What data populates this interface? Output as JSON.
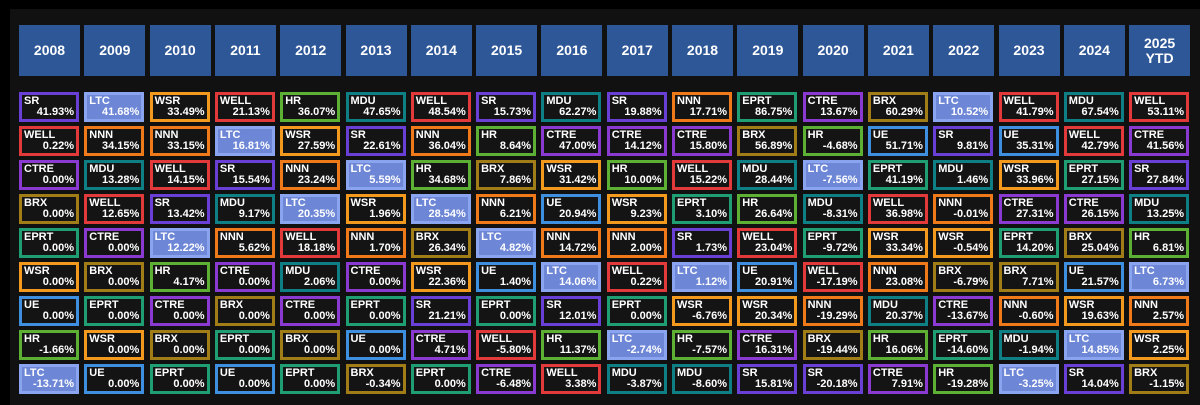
{
  "chart_data": {
    "type": "table",
    "title": "",
    "years": [
      "2008",
      "2009",
      "2010",
      "2011",
      "2012",
      "2013",
      "2014",
      "2015",
      "2016",
      "2017",
      "2018",
      "2019",
      "2020",
      "2021",
      "2022",
      "2023",
      "2024",
      "2025\nYTD"
    ],
    "colors": {
      "SR": "#6a3fd6",
      "LTC": "#8aa4f0",
      "WSR": "#f39a1e",
      "WELL": "#e23a3a",
      "HR": "#5cb135",
      "MDU": "#0f7f86",
      "NNN": "#f07a1a",
      "EPRT": "#1f9e74",
      "CTRE": "#8a3ad0",
      "BRX": "#a17d18",
      "UE": "#3f8fe0",
      "highlight_bg": "#6d86d6",
      "header_bg": "#2e5797"
    },
    "highlight_ticker": "LTC",
    "columns": [
      [
        [
          "SR",
          "41.93%"
        ],
        [
          "WELL",
          "0.22%"
        ],
        [
          "CTRE",
          "0.00%"
        ],
        [
          "BRX",
          "0.00%"
        ],
        [
          "EPRT",
          "0.00%"
        ],
        [
          "WSR",
          "0.00%"
        ],
        [
          "UE",
          "0.00%"
        ],
        [
          "HR",
          "-1.66%"
        ],
        [
          "LTC",
          "-13.71%"
        ]
      ],
      [
        [
          "LTC",
          "41.68%"
        ],
        [
          "NNN",
          "34.15%"
        ],
        [
          "MDU",
          "13.28%"
        ],
        [
          "WELL",
          "12.65%"
        ],
        [
          "CTRE",
          "0.00%"
        ],
        [
          "BRX",
          "0.00%"
        ],
        [
          "EPRT",
          "0.00%"
        ],
        [
          "WSR",
          "0.00%"
        ],
        [
          "UE",
          "0.00%"
        ]
      ],
      [
        [
          "WSR",
          "33.49%"
        ],
        [
          "NNN",
          "33.15%"
        ],
        [
          "WELL",
          "14.15%"
        ],
        [
          "SR",
          "13.42%"
        ],
        [
          "LTC",
          "12.22%"
        ],
        [
          "HR",
          "4.17%"
        ],
        [
          "CTRE",
          "0.00%"
        ],
        [
          "BRX",
          "0.00%"
        ],
        [
          "EPRT",
          "0.00%"
        ]
      ],
      [
        [
          "WELL",
          "21.13%"
        ],
        [
          "LTC",
          "16.81%"
        ],
        [
          "SR",
          "15.54%"
        ],
        [
          "MDU",
          "9.17%"
        ],
        [
          "NNN",
          "5.62%"
        ],
        [
          "CTRE",
          "0.00%"
        ],
        [
          "BRX",
          "0.00%"
        ],
        [
          "EPRT",
          "0.00%"
        ],
        [
          "UE",
          "0.00%"
        ]
      ],
      [
        [
          "HR",
          "36.07%"
        ],
        [
          "WSR",
          "27.59%"
        ],
        [
          "NNN",
          "23.24%"
        ],
        [
          "LTC",
          "20.35%"
        ],
        [
          "WELL",
          "18.18%"
        ],
        [
          "MDU",
          "2.06%"
        ],
        [
          "CTRE",
          "0.00%"
        ],
        [
          "BRX",
          "0.00%"
        ],
        [
          "EPRT",
          "0.00%"
        ]
      ],
      [
        [
          "MDU",
          "47.65%"
        ],
        [
          "SR",
          "22.61%"
        ],
        [
          "LTC",
          "5.59%"
        ],
        [
          "WSR",
          "1.96%"
        ],
        [
          "NNN",
          "1.70%"
        ],
        [
          "CTRE",
          "0.00%"
        ],
        [
          "EPRT",
          "0.00%"
        ],
        [
          "UE",
          "0.00%"
        ],
        [
          "BRX",
          "-0.34%"
        ]
      ],
      [
        [
          "WELL",
          "48.54%"
        ],
        [
          "NNN",
          "36.04%"
        ],
        [
          "HR",
          "34.68%"
        ],
        [
          "LTC",
          "28.54%"
        ],
        [
          "BRX",
          "26.34%"
        ],
        [
          "WSR",
          "22.36%"
        ],
        [
          "SR",
          "21.21%"
        ],
        [
          "CTRE",
          "4.71%"
        ],
        [
          "EPRT",
          "0.00%"
        ]
      ],
      [
        [
          "SR",
          "15.73%"
        ],
        [
          "HR",
          "8.64%"
        ],
        [
          "BRX",
          "7.86%"
        ],
        [
          "NNN",
          "6.21%"
        ],
        [
          "LTC",
          "4.82%"
        ],
        [
          "UE",
          "1.40%"
        ],
        [
          "EPRT",
          "0.00%"
        ],
        [
          "WELL",
          "-5.80%"
        ],
        [
          "CTRE",
          "-6.48%"
        ]
      ],
      [
        [
          "MDU",
          "62.27%"
        ],
        [
          "CTRE",
          "47.00%"
        ],
        [
          "WSR",
          "31.42%"
        ],
        [
          "UE",
          "20.94%"
        ],
        [
          "NNN",
          "14.72%"
        ],
        [
          "LTC",
          "14.06%"
        ],
        [
          "SR",
          "12.01%"
        ],
        [
          "HR",
          "11.37%"
        ],
        [
          "WELL",
          "3.38%"
        ]
      ],
      [
        [
          "SR",
          "19.88%"
        ],
        [
          "CTRE",
          "14.12%"
        ],
        [
          "HR",
          "10.00%"
        ],
        [
          "WSR",
          "9.23%"
        ],
        [
          "NNN",
          "2.00%"
        ],
        [
          "WELL",
          "0.22%"
        ],
        [
          "EPRT",
          "0.00%"
        ],
        [
          "LTC",
          "-2.74%"
        ],
        [
          "MDU",
          "-3.87%"
        ]
      ],
      [
        [
          "NNN",
          "17.71%"
        ],
        [
          "CTRE",
          "15.80%"
        ],
        [
          "WELL",
          "15.22%"
        ],
        [
          "EPRT",
          "3.10%"
        ],
        [
          "SR",
          "1.73%"
        ],
        [
          "LTC",
          "1.12%"
        ],
        [
          "WSR",
          "-6.76%"
        ],
        [
          "HR",
          "-7.57%"
        ],
        [
          "MDU",
          "-8.60%"
        ]
      ],
      [
        [
          "EPRT",
          "86.75%"
        ],
        [
          "BRX",
          "56.89%"
        ],
        [
          "MDU",
          "28.44%"
        ],
        [
          "HR",
          "26.64%"
        ],
        [
          "WELL",
          "23.04%"
        ],
        [
          "UE",
          "20.91%"
        ],
        [
          "WSR",
          "20.34%"
        ],
        [
          "CTRE",
          "16.31%"
        ],
        [
          "SR",
          "15.81%"
        ]
      ],
      [
        [
          "CTRE",
          "13.67%"
        ],
        [
          "HR",
          "-4.68%"
        ],
        [
          "LTC",
          "-7.56%"
        ],
        [
          "MDU",
          "-8.31%"
        ],
        [
          "EPRT",
          "-9.72%"
        ],
        [
          "WELL",
          "-17.19%"
        ],
        [
          "NNN",
          "-19.29%"
        ],
        [
          "BRX",
          "-19.44%"
        ],
        [
          "SR",
          "-20.18%"
        ]
      ],
      [
        [
          "BRX",
          "60.29%"
        ],
        [
          "UE",
          "51.71%"
        ],
        [
          "EPRT",
          "41.19%"
        ],
        [
          "WELL",
          "36.98%"
        ],
        [
          "WSR",
          "33.34%"
        ],
        [
          "NNN",
          "23.08%"
        ],
        [
          "MDU",
          "20.37%"
        ],
        [
          "HR",
          "16.06%"
        ],
        [
          "CTRE",
          "7.91%"
        ]
      ],
      [
        [
          "LTC",
          "10.52%"
        ],
        [
          "SR",
          "9.81%"
        ],
        [
          "MDU",
          "1.46%"
        ],
        [
          "NNN",
          "-0.01%"
        ],
        [
          "WSR",
          "-0.54%"
        ],
        [
          "BRX",
          "-6.79%"
        ],
        [
          "CTRE",
          "-13.67%"
        ],
        [
          "EPRT",
          "-14.60%"
        ],
        [
          "HR",
          "-19.28%"
        ]
      ],
      [
        [
          "WELL",
          "41.79%"
        ],
        [
          "UE",
          "35.31%"
        ],
        [
          "WSR",
          "33.96%"
        ],
        [
          "CTRE",
          "27.31%"
        ],
        [
          "EPRT",
          "14.20%"
        ],
        [
          "BRX",
          "7.71%"
        ],
        [
          "NNN",
          "-0.60%"
        ],
        [
          "MDU",
          "-1.94%"
        ],
        [
          "LTC",
          "-3.25%"
        ]
      ],
      [
        [
          "MDU",
          "67.54%"
        ],
        [
          "WELL",
          "42.79%"
        ],
        [
          "EPRT",
          "27.15%"
        ],
        [
          "CTRE",
          "26.15%"
        ],
        [
          "BRX",
          "25.04%"
        ],
        [
          "UE",
          "21.57%"
        ],
        [
          "WSR",
          "19.63%"
        ],
        [
          "LTC",
          "14.85%"
        ],
        [
          "SR",
          "14.04%"
        ]
      ],
      [
        [
          "WELL",
          "53.11%"
        ],
        [
          "CTRE",
          "41.56%"
        ],
        [
          "SR",
          "27.84%"
        ],
        [
          "MDU",
          "13.25%"
        ],
        [
          "HR",
          "6.81%"
        ],
        [
          "LTC",
          "6.73%"
        ],
        [
          "NNN",
          "2.57%"
        ],
        [
          "WSR",
          "2.25%"
        ],
        [
          "BRX",
          "-1.15%"
        ]
      ]
    ]
  }
}
